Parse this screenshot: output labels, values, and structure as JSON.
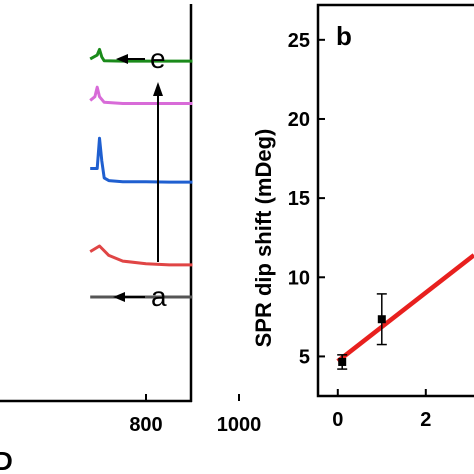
{
  "chart_data": [
    {
      "type": "line",
      "panel_label": "",
      "xlim": [
        0,
        1000
      ],
      "x_ticks": [
        800,
        1000
      ],
      "x_tick_labels": [
        "800",
        "1000"
      ],
      "bottom_label_fragment": "D",
      "series": [
        {
          "label": "a",
          "color": "#555555",
          "x": [
            680,
            700,
            750,
            800,
            850,
            900
          ],
          "y": [
            0.0,
            0.0,
            0.0,
            0.0,
            0.0,
            0.0
          ]
        },
        {
          "label": "",
          "color": "#e04545",
          "x": [
            680,
            700,
            720,
            750,
            800,
            850,
            900
          ],
          "y": [
            1.2,
            1.35,
            1.1,
            0.95,
            0.88,
            0.85,
            0.85
          ]
        },
        {
          "label": "",
          "color": "#1f5fd0",
          "x": [
            680,
            695,
            700,
            705,
            710,
            720,
            750,
            800,
            850,
            900
          ],
          "y": [
            3.4,
            3.4,
            4.2,
            3.6,
            3.15,
            3.08,
            3.05,
            3.05,
            3.04,
            3.04
          ]
        },
        {
          "label": "",
          "color": "#d86bd8",
          "x": [
            680,
            690,
            695,
            700,
            710,
            750,
            800,
            850,
            900
          ],
          "y": [
            5.2,
            5.3,
            5.55,
            5.3,
            5.15,
            5.12,
            5.12,
            5.12,
            5.12
          ]
        },
        {
          "label": "e",
          "color": "#1a8a1a",
          "x": [
            680,
            695,
            700,
            705,
            710,
            750,
            800,
            850,
            900
          ],
          "y": [
            6.3,
            6.4,
            6.55,
            6.35,
            6.25,
            6.24,
            6.24,
            6.24,
            6.24
          ]
        }
      ],
      "ylim": [
        -1.5,
        8.8
      ]
    },
    {
      "type": "scatter",
      "panel_label": "b",
      "ylabel": "SPR dip shift (mDeg)",
      "xlim": [
        -0.45,
        3.4
      ],
      "ylim": [
        2.5,
        27.2
      ],
      "x_ticks": [
        0,
        2
      ],
      "y_ticks": [
        5,
        10,
        15,
        20,
        25
      ],
      "points": [
        {
          "x": 0.1,
          "y": 4.65,
          "err": 0.45
        },
        {
          "x": 1.0,
          "y": 7.35,
          "err": 1.6
        }
      ],
      "fit_line": {
        "color": "#e8201e",
        "x": [
          0.0,
          3.4
        ],
        "y": [
          4.7,
          11.4
        ]
      }
    }
  ]
}
